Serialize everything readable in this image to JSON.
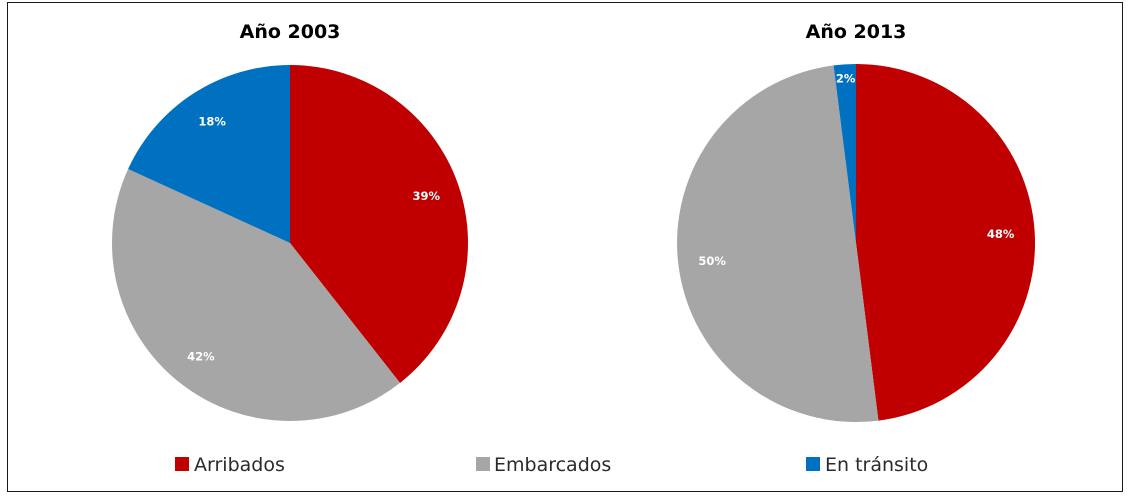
{
  "chart_data": [
    {
      "type": "pie",
      "title": "Año 2003",
      "categories": [
        "Arribados",
        "Embarcados",
        "En tránsito"
      ],
      "values": [
        39,
        42,
        18
      ],
      "labels": [
        "39%",
        "42%",
        "18%"
      ],
      "colors": [
        "#C00000",
        "#A6A6A6",
        "#0070C0"
      ]
    },
    {
      "type": "pie",
      "title": "Año 2013",
      "categories": [
        "Arribados",
        "Embarcados",
        "En tránsito"
      ],
      "values": [
        48,
        50,
        2
      ],
      "labels": [
        "48%",
        "50%",
        "2%"
      ],
      "colors": [
        "#C00000",
        "#A6A6A6",
        "#0070C0"
      ]
    }
  ],
  "legend": {
    "placement": "bottom",
    "items": [
      {
        "label": "Arribados",
        "color": "#C00000"
      },
      {
        "label": "Embarcados",
        "color": "#A6A6A6"
      },
      {
        "label": "En tránsito",
        "color": "#0070C0"
      }
    ]
  }
}
